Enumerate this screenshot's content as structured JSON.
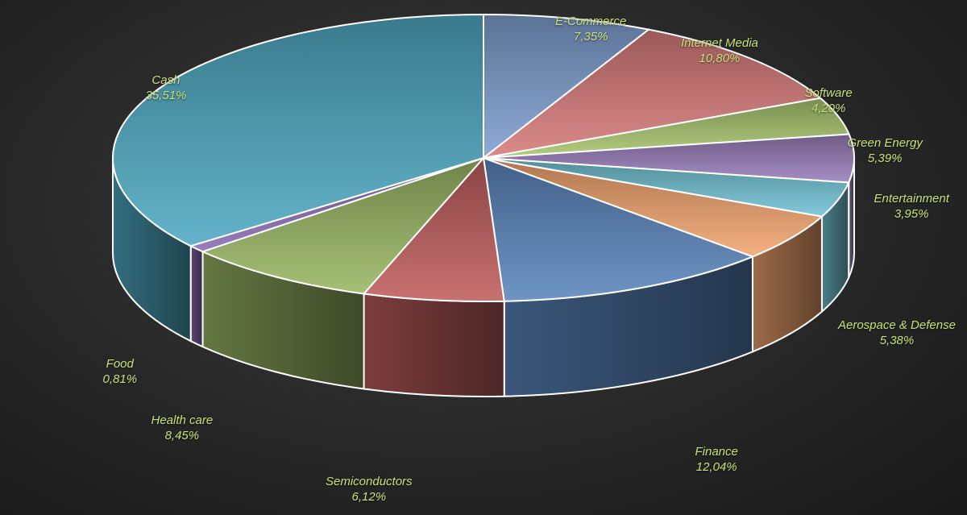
{
  "chart_data": {
    "type": "pie",
    "title": "",
    "slices": [
      {
        "label": "E-Commerce",
        "value": 7.35,
        "display": "7,35%",
        "color": "#7f9fd0"
      },
      {
        "label": "Internet Media",
        "value": 10.8,
        "display": "10,80%",
        "color": "#d77b7a"
      },
      {
        "label": "Software",
        "value": 4.2,
        "display": "4,20%",
        "color": "#a9c66f"
      },
      {
        "label": "Green Energy",
        "value": 5.39,
        "display": "5,39%",
        "color": "#9a7fbc"
      },
      {
        "label": "Entertainment",
        "value": 3.95,
        "display": "3,95%",
        "color": "#72c3d5"
      },
      {
        "label": "Aerospace & Defense",
        "value": 5.38,
        "display": "5,38%",
        "color": "#f3a56f"
      },
      {
        "label": "Finance",
        "value": 12.04,
        "display": "12,04%",
        "color": "#5b86bd"
      },
      {
        "label": "Semiconductors",
        "value": 6.12,
        "display": "6,12%",
        "color": "#c05e5e"
      },
      {
        "label": "Health care",
        "value": 8.45,
        "display": "8,45%",
        "color": "#9ab765"
      },
      {
        "label": "Food",
        "value": 0.81,
        "display": "0,81%",
        "color": "#8a6db5"
      },
      {
        "label": "Cash",
        "value": 35.51,
        "display": "35,51%",
        "color": "#4fa9c3"
      }
    ],
    "label_color": "#c8e07a",
    "background_color": "#2b2b2b"
  }
}
